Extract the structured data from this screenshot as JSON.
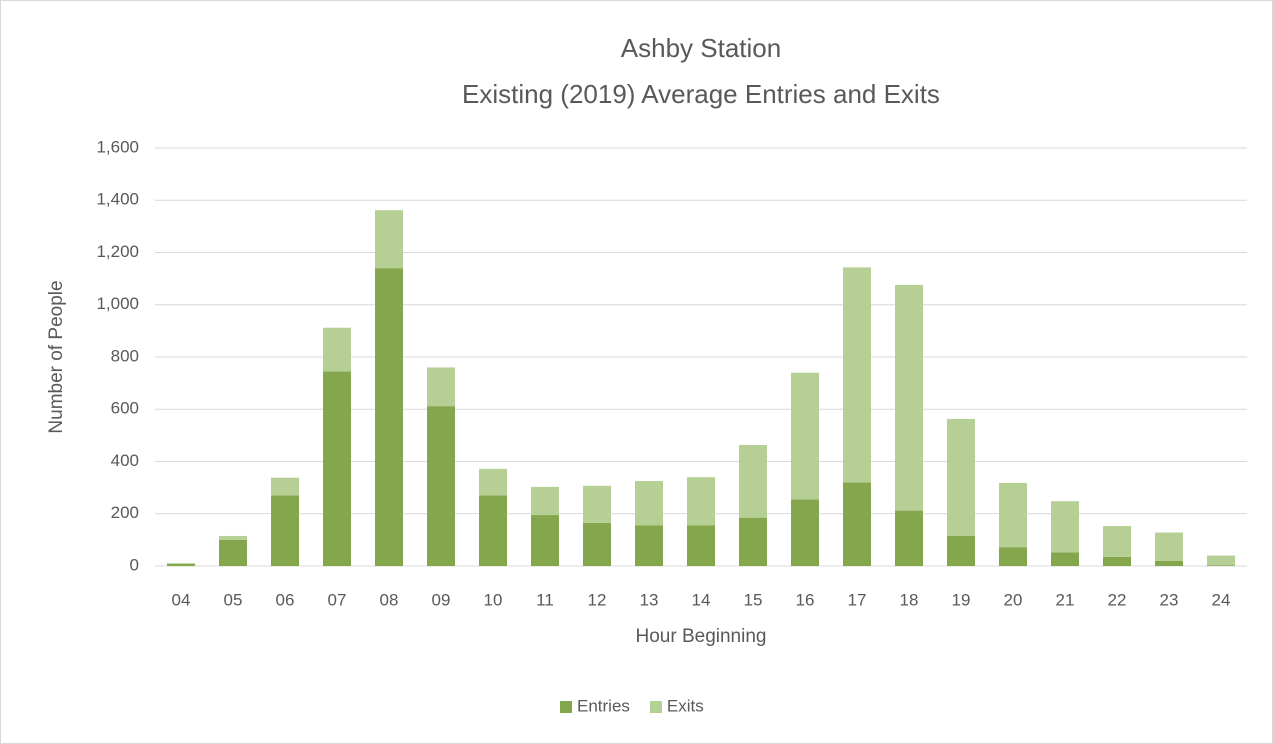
{
  "chart_data": {
    "type": "bar",
    "stacked": true,
    "title": "Ashby Station",
    "subtitle": "Existing (2019) Average Entries and Exits",
    "x_label": "Hour Beginning",
    "y_label": "Number of People",
    "categories": [
      "04",
      "05",
      "06",
      "07",
      "08",
      "09",
      "10",
      "11",
      "12",
      "13",
      "14",
      "15",
      "16",
      "17",
      "18",
      "19",
      "20",
      "21",
      "22",
      "23",
      "24"
    ],
    "series": [
      {
        "name": "Entries",
        "color": "#84a64c",
        "values": [
          8,
          100,
          270,
          745,
          1140,
          612,
          270,
          195,
          165,
          155,
          155,
          185,
          255,
          320,
          212,
          115,
          72,
          52,
          35,
          20,
          2
        ]
      },
      {
        "name": "Exits",
        "color": "#b6cf94",
        "values": [
          3,
          15,
          68,
          167,
          222,
          148,
          102,
          108,
          142,
          170,
          185,
          278,
          485,
          823,
          864,
          448,
          246,
          196,
          118,
          108,
          38
        ]
      }
    ],
    "ylim": [
      0,
      1600
    ],
    "yticks": [
      0,
      200,
      400,
      600,
      800,
      {
        "value": 1000,
        "label": "1,000"
      },
      {
        "value": 1200,
        "label": "1,200"
      },
      {
        "value": 1400,
        "label": "1,400"
      },
      {
        "value": 1600,
        "label": "1,600"
      }
    ],
    "grid": true,
    "legend": "bottom"
  }
}
